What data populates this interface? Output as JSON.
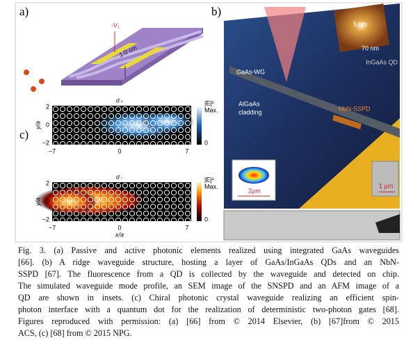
{
  "panel_a": {
    "label": "a)",
    "voltage": "-V₁",
    "length": "1.0 cm"
  },
  "panel_b": {
    "label": "b)",
    "afm_height": "5 nm",
    "afm_width": "70 nm",
    "qd_label": "InGaAs QD",
    "waveguide": "GaAs-WG",
    "cladding": [
      "AlGaAs",
      "cladding"
    ],
    "detector": "NbN-SSPD",
    "mode_scale": "2µm",
    "sem_scale": "1 µm"
  },
  "panel_c": {
    "label": "c)",
    "y_label": "y/a",
    "x_label": "x/a",
    "plots": [
      {
        "title": "σ₊",
        "colorbar_title": "|E|²",
        "colorbar_max": "Max.",
        "colorbar_min": "0",
        "yticks": [
          "2",
          "0",
          "−2"
        ],
        "xticks": [
          "−7",
          "0",
          "7"
        ]
      },
      {
        "title": "σ₋",
        "colorbar_title": "|E|²",
        "colorbar_max": "Max.",
        "colorbar_min": "0",
        "yticks": [
          "2",
          "0",
          "−2"
        ],
        "xticks": [
          "−7",
          "0",
          "7"
        ]
      }
    ]
  },
  "caption": {
    "lines": [
      "Fig. 3. (a) Passive and active photonic elements realized using integrated GaAs waveguides",
      "[66]. (b) A ridge waveguide structure, hosting a layer of GaAs/InGaAs QDs and an NbN-",
      "SSPD [67]. The fluorescence from a QD is collected by the waveguide and detected on chip.",
      "The simulated waveguide mode profile, an SEM image of the SNSPD and an AFM image of a",
      "QD are shown in insets. (c) Chiral photonic crystal waveguide realizing an efficient spin-",
      "photon interface with a quantum dot for the realization of deterministic two-photon gates [68].",
      "Figures reproduced with permission: (a) [66] from © 2014 Elsevier, (b) [67]from © 2015",
      "ACS, (c) [68] from © 2015 NPG."
    ]
  }
}
